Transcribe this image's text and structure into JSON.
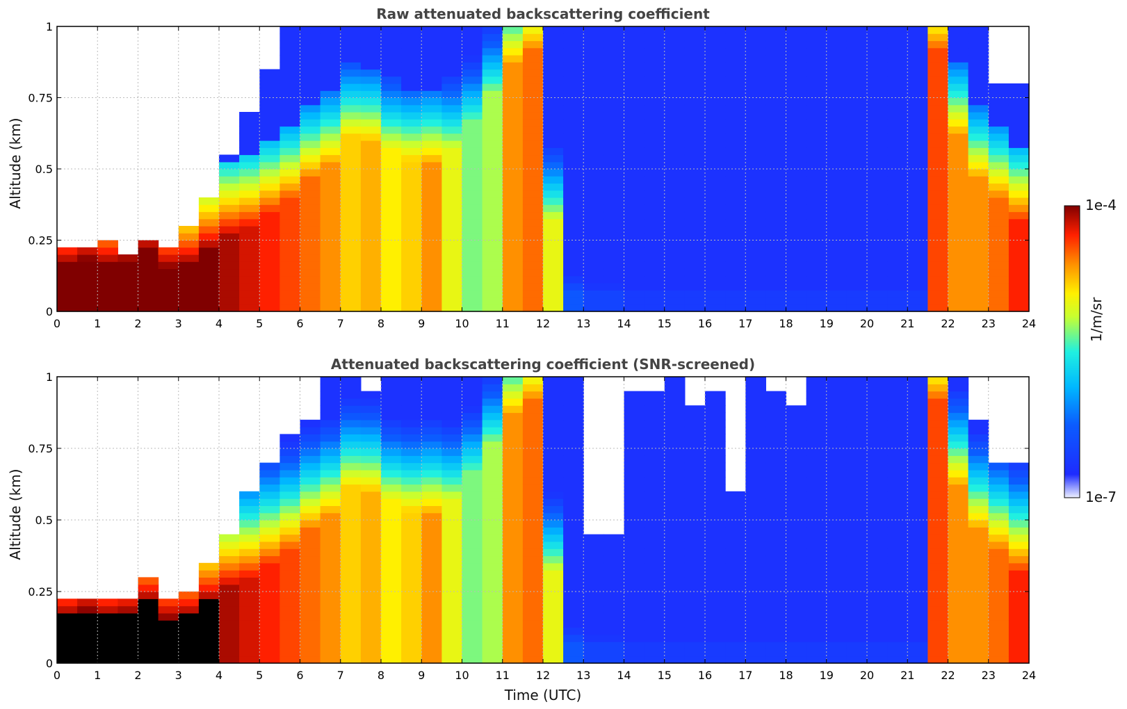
{
  "chart_data": [
    {
      "type": "heatmap",
      "title": "Raw attenuated backscattering coefficient",
      "xlabel": "",
      "ylabel": "Altitude (km)",
      "xlim": [
        0,
        24
      ],
      "ylim": [
        0,
        1
      ],
      "x_ticks": [
        "0",
        "1",
        "2",
        "3",
        "4",
        "5",
        "6",
        "7",
        "8",
        "9",
        "10",
        "11",
        "12",
        "13",
        "14",
        "15",
        "16",
        "17",
        "18",
        "19",
        "20",
        "21",
        "22",
        "23",
        "24"
      ],
      "y_ticks": [
        "0",
        "0.25",
        "0.5",
        "0.75",
        "1"
      ],
      "grid": true,
      "screened": false,
      "x": [
        0,
        0.5,
        1,
        1.5,
        2,
        2.5,
        3,
        3.5,
        4,
        4.5,
        5,
        5.5,
        6,
        6.5,
        7,
        7.5,
        8,
        8.5,
        9,
        9.5,
        10,
        10.5,
        11,
        11.5,
        12,
        12.5,
        13,
        13.5,
        14,
        14.5,
        15,
        15.5,
        16,
        16.5,
        17,
        17.5,
        18,
        18.5,
        19,
        19.5,
        20,
        20.5,
        21,
        21.5,
        22,
        22.5,
        23,
        23.5
      ],
      "layer_top_km": [
        0.15,
        0.17,
        0.15,
        0.16,
        0.2,
        0.14,
        0.15,
        0.2,
        0.25,
        0.28,
        0.33,
        0.38,
        0.45,
        0.5,
        0.6,
        0.58,
        0.55,
        0.52,
        0.5,
        0.55,
        0.65,
        0.75,
        0.85,
        0.9,
        0.3,
        0.05,
        0.05,
        0.05,
        0.05,
        0.05,
        0.05,
        0.05,
        0.05,
        0.05,
        0.05,
        0.05,
        0.05,
        0.05,
        0.05,
        0.05,
        0.05,
        0.05,
        0.05,
        0.9,
        0.6,
        0.45,
        0.38,
        0.3
      ],
      "peak_log10": [
        -4.0,
        -4.0,
        -4.0,
        -4.0,
        -4.0,
        -4.0,
        -4.0,
        -4.0,
        -4.1,
        -4.2,
        -4.3,
        -4.4,
        -4.5,
        -4.6,
        -4.8,
        -4.7,
        -4.9,
        -4.8,
        -4.6,
        -5.0,
        -5.3,
        -5.2,
        -4.6,
        -4.5,
        -5.0,
        -6.3,
        -6.5,
        -6.5,
        -6.6,
        -6.6,
        -6.6,
        -6.6,
        -6.6,
        -6.6,
        -6.6,
        -6.6,
        -6.6,
        -6.6,
        -6.6,
        -6.6,
        -6.6,
        -6.6,
        -6.6,
        -4.4,
        -4.6,
        -4.6,
        -4.5,
        -4.3
      ],
      "noise_top_km": [
        0.22,
        0.22,
        0.23,
        0.2,
        0.25,
        0.22,
        0.3,
        0.4,
        0.55,
        0.7,
        0.85,
        1.0,
        1.0,
        1.0,
        1.0,
        1.0,
        1.0,
        1.0,
        1.0,
        1.0,
        1.0,
        1.0,
        1.0,
        1.0,
        1.0,
        1.0,
        1.0,
        1.0,
        1.0,
        1.0,
        1.0,
        1.0,
        1.0,
        1.0,
        1.0,
        1.0,
        1.0,
        1.0,
        1.0,
        1.0,
        1.0,
        1.0,
        1.0,
        1.0,
        1.0,
        1.0,
        0.8,
        0.8
      ]
    },
    {
      "type": "heatmap",
      "title": "Attenuated backscattering coefficient (SNR-screened)",
      "xlabel": "Time (UTC)",
      "ylabel": "Altitude (km)",
      "xlim": [
        0,
        24
      ],
      "ylim": [
        0,
        1
      ],
      "x_ticks": [
        "0",
        "1",
        "2",
        "3",
        "4",
        "5",
        "6",
        "7",
        "8",
        "9",
        "10",
        "11",
        "12",
        "13",
        "14",
        "15",
        "16",
        "17",
        "18",
        "19",
        "20",
        "21",
        "22",
        "23",
        "24"
      ],
      "y_ticks": [
        "0",
        "0.25",
        "0.5",
        "0.75",
        "1"
      ],
      "grid": true,
      "screened": true,
      "x": [
        0,
        0.5,
        1,
        1.5,
        2,
        2.5,
        3,
        3.5,
        4,
        4.5,
        5,
        5.5,
        6,
        6.5,
        7,
        7.5,
        8,
        8.5,
        9,
        9.5,
        10,
        10.5,
        11,
        11.5,
        12,
        12.5,
        13,
        13.5,
        14,
        14.5,
        15,
        15.5,
        16,
        16.5,
        17,
        17.5,
        18,
        18.5,
        19,
        19.5,
        20,
        20.5,
        21,
        21.5,
        22,
        22.5,
        23,
        23.5
      ],
      "layer_top_km": [
        0.15,
        0.17,
        0.15,
        0.16,
        0.2,
        0.14,
        0.15,
        0.2,
        0.25,
        0.28,
        0.33,
        0.38,
        0.45,
        0.5,
        0.6,
        0.58,
        0.55,
        0.52,
        0.5,
        0.55,
        0.65,
        0.75,
        0.85,
        0.9,
        0.3,
        0.05,
        0.05,
        0.05,
        0.05,
        0.05,
        0.05,
        0.05,
        0.05,
        0.05,
        0.05,
        0.05,
        0.05,
        0.05,
        0.05,
        0.05,
        0.05,
        0.05,
        0.05,
        0.9,
        0.6,
        0.45,
        0.38,
        0.3
      ],
      "peak_log10": [
        -4.0,
        -4.0,
        -4.0,
        -4.0,
        -4.0,
        -4.0,
        -4.0,
        -4.0,
        -4.1,
        -4.2,
        -4.3,
        -4.4,
        -4.5,
        -4.6,
        -4.8,
        -4.7,
        -4.9,
        -4.8,
        -4.6,
        -5.0,
        -5.3,
        -5.2,
        -4.6,
        -4.5,
        -5.0,
        -6.3,
        -6.5,
        -6.5,
        -6.6,
        -6.6,
        -6.6,
        -6.6,
        -6.6,
        -6.6,
        -6.6,
        -6.6,
        -6.6,
        -6.6,
        -6.6,
        -6.6,
        -6.6,
        -6.6,
        -6.6,
        -4.4,
        -4.6,
        -4.6,
        -4.5,
        -4.3
      ],
      "valid_top_km": [
        0.22,
        0.22,
        0.22,
        0.22,
        0.28,
        0.22,
        0.25,
        0.35,
        0.45,
        0.6,
        0.7,
        0.8,
        0.85,
        1.0,
        1.0,
        0.95,
        1.0,
        1.0,
        1.0,
        1.0,
        1.0,
        1.0,
        1.0,
        1.0,
        1.0,
        1.0,
        0.45,
        0.45,
        0.95,
        0.95,
        1.0,
        0.9,
        0.95,
        0.6,
        1.0,
        0.95,
        0.9,
        1.0,
        1.0,
        1.0,
        1.0,
        1.0,
        1.0,
        1.0,
        1.0,
        0.85,
        0.7,
        0.7
      ]
    }
  ],
  "colorbar": {
    "label": "1/m/sr",
    "max_label": "1e-4",
    "min_label": "1e-7",
    "scale": "log",
    "range_log10": [
      -7,
      -4
    ],
    "colormap": "jet"
  }
}
